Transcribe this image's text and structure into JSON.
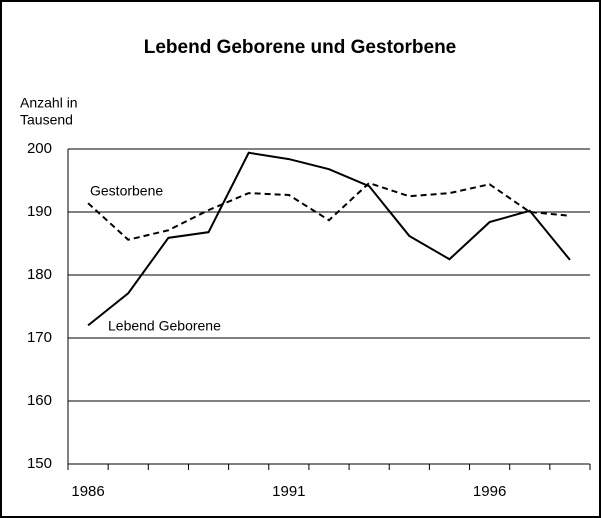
{
  "chart_data": {
    "type": "line",
    "title": "Lebend Geborene und Gestorbene",
    "y_label": [
      "Anzahl in",
      "Tausend"
    ],
    "categories": [
      "1986",
      null,
      null,
      null,
      null,
      "1991",
      null,
      null,
      null,
      null,
      "1996",
      null,
      null
    ],
    "series": [
      {
        "name": "Lebend Geborene",
        "color": "#000000",
        "dash": false,
        "values": [
          172,
          177.1,
          185.9,
          186.8,
          199.4,
          198.4,
          196.8,
          194.1,
          186.2,
          182.5,
          188.4,
          190.2,
          182.4
        ]
      },
      {
        "name": "Gestorbene",
        "color": "#000000",
        "dash": true,
        "values": [
          191.4,
          185.6,
          187.1,
          190.3,
          193,
          192.7,
          188.7,
          194.6,
          192.5,
          193,
          194.4,
          190,
          189.4
        ]
      }
    ],
    "ylim": [
      150,
      200
    ],
    "yticks": [
      150,
      160,
      170,
      180,
      190,
      200
    ],
    "grid": true
  }
}
